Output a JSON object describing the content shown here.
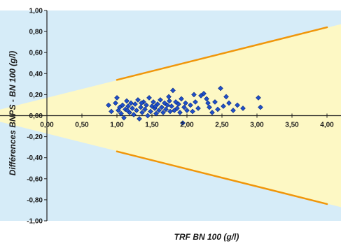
{
  "chart_data": {
    "type": "scatter",
    "title": "",
    "xlabel": "TRF BN 100 (g/l)",
    "ylabel": "Différences BNPS - BN 100 (g/l)",
    "xlim": [
      0,
      4.2
    ],
    "ylim": [
      -1.0,
      1.0
    ],
    "x_ticks": [
      0,
      0.5,
      1.0,
      1.5,
      2.0,
      2.5,
      3.0,
      3.5,
      4.0
    ],
    "x_tick_labels": [
      "0,00",
      "0,50",
      "1,00",
      "1,50",
      "2,00",
      "2,50",
      "3,00",
      "3,50",
      "4,00"
    ],
    "y_ticks": [
      1.0,
      0.8,
      0.6,
      0.4,
      0.2,
      0.0,
      -0.2,
      -0.4,
      -0.6,
      -0.8,
      -1.0
    ],
    "y_tick_labels": [
      "1,00",
      "0,80",
      "0,60",
      "0,40",
      "0,20",
      "0,00",
      "-0,20",
      "-0,40",
      "-0,60",
      "-0,80",
      "-1,00"
    ],
    "grid": false,
    "colors": {
      "plot_background": "#d6ecf8",
      "acceptance_band": "#fdf8c4",
      "limit_lines": "#f0960a",
      "points": "#1f4fc9",
      "points_edge": "#0d2b7a"
    },
    "acceptance_band": {
      "upper": [
        [
          0,
          0.17
        ],
        [
          4.2,
          0.87
        ]
      ],
      "lower": [
        [
          0,
          -0.17
        ],
        [
          4.2,
          -0.87
        ]
      ]
    },
    "limit_lines": {
      "upper": [
        [
          1.0,
          0.34
        ],
        [
          4.0,
          0.84
        ]
      ],
      "lower": [
        [
          1.0,
          -0.34
        ],
        [
          4.0,
          -0.84
        ]
      ]
    },
    "series": [
      {
        "points": [
          [
            0.88,
            0.1
          ],
          [
            0.92,
            0.04
          ],
          [
            0.98,
            0.12
          ],
          [
            1.0,
            0.17
          ],
          [
            1.02,
            0.05
          ],
          [
            1.04,
            0.08
          ],
          [
            1.06,
            0.02
          ],
          [
            1.08,
            0.1
          ],
          [
            1.1,
            -0.02
          ],
          [
            1.12,
            0.06
          ],
          [
            1.14,
            0.14
          ],
          [
            1.16,
            0.09
          ],
          [
            1.18,
            0.03
          ],
          [
            1.2,
            0.12
          ],
          [
            1.22,
            0.07
          ],
          [
            1.24,
            0.01
          ],
          [
            1.26,
            0.11
          ],
          [
            1.28,
            0.05
          ],
          [
            1.3,
            0.15
          ],
          [
            1.32,
            -0.03
          ],
          [
            1.34,
            0.08
          ],
          [
            1.36,
            0.03
          ],
          [
            1.38,
            0.13
          ],
          [
            1.4,
            0.06
          ],
          [
            1.42,
            0.1
          ],
          [
            1.44,
            0.0
          ],
          [
            1.46,
            0.17
          ],
          [
            1.48,
            0.04
          ],
          [
            1.5,
            0.09
          ],
          [
            1.52,
            0.13
          ],
          [
            1.54,
            0.07
          ],
          [
            1.56,
            0.02
          ],
          [
            1.58,
            0.11
          ],
          [
            1.6,
            0.05
          ],
          [
            1.62,
            0.15
          ],
          [
            1.64,
            0.08
          ],
          [
            1.66,
            0.03
          ],
          [
            1.68,
            0.12
          ],
          [
            1.7,
            0.06
          ],
          [
            1.72,
            0.1
          ],
          [
            1.74,
            0.18
          ],
          [
            1.76,
            0.04
          ],
          [
            1.78,
            0.09
          ],
          [
            1.8,
            0.24
          ],
          [
            1.82,
            0.05
          ],
          [
            1.84,
            0.13
          ],
          [
            1.86,
            0.07
          ],
          [
            1.88,
            0.11
          ],
          [
            1.9,
            0.03
          ],
          [
            1.92,
            0.16
          ],
          [
            1.94,
            -0.07
          ],
          [
            1.96,
            0.08
          ],
          [
            1.98,
            0.12
          ],
          [
            2.0,
            0.05
          ],
          [
            2.05,
            0.1
          ],
          [
            2.08,
            0.04
          ],
          [
            2.12,
            0.13
          ],
          [
            2.16,
            0.07
          ],
          [
            2.2,
            0.19
          ],
          [
            2.24,
            0.21
          ],
          [
            2.28,
            0.16
          ],
          [
            2.32,
            0.08
          ],
          [
            2.36,
            0.03
          ],
          [
            2.4,
            0.13
          ],
          [
            2.44,
            0.06
          ],
          [
            2.48,
            0.26
          ],
          [
            2.52,
            0.09
          ],
          [
            2.56,
            0.18
          ],
          [
            2.6,
            0.12
          ],
          [
            2.66,
            0.05
          ],
          [
            2.72,
            0.1
          ],
          [
            2.8,
            0.07
          ],
          [
            3.02,
            0.17
          ],
          [
            3.05,
            0.08
          ],
          [
            1.15,
            0.05
          ],
          [
            1.35,
            0.12
          ],
          [
            1.55,
            0.09
          ],
          [
            1.75,
            0.14
          ],
          [
            2.1,
            0.2
          ],
          [
            2.3,
            0.12
          ]
        ]
      }
    ]
  }
}
